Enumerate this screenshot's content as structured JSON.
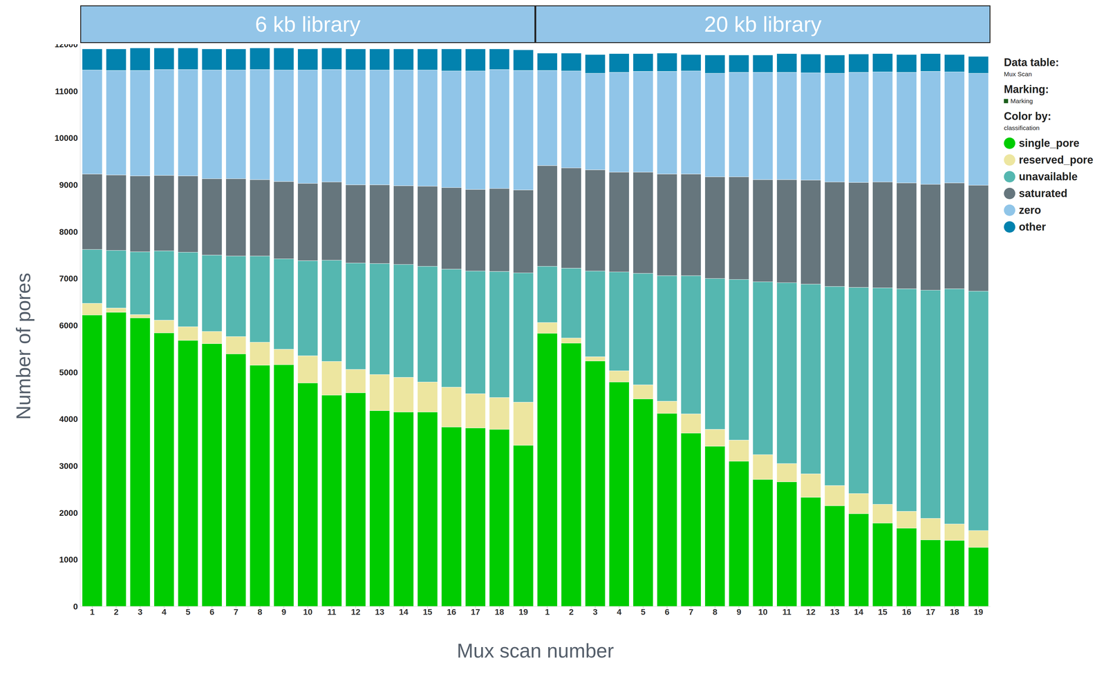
{
  "chart_data": {
    "type": "bar",
    "stacked": true,
    "grid": false,
    "legend": "right",
    "x_label": "Mux scan number",
    "y_label": "Number of pores",
    "ylim": [
      0,
      12000
    ],
    "yticks": [
      0,
      1000,
      2000,
      3000,
      4000,
      5000,
      6000,
      7000,
      8000,
      9000,
      10000,
      11000,
      12000
    ],
    "legend_header": [
      {
        "label": "Data table:",
        "value": "Mux Scan"
      },
      {
        "label": "Marking:",
        "value": "Marking"
      },
      {
        "label": "Color by:",
        "value": "classification"
      }
    ],
    "panels": [
      {
        "title": "6 kb library",
        "categories": [
          "1",
          "2",
          "3",
          "4",
          "5",
          "6",
          "7",
          "8",
          "9",
          "10",
          "11",
          "12",
          "13",
          "14",
          "15",
          "16",
          "17",
          "18",
          "19"
        ],
        "series": [
          {
            "name": "single_pore",
            "color": "#00cc00",
            "values": [
              6220,
              6280,
              6160,
              5840,
              5680,
              5610,
              5390,
              5150,
              5160,
              4770,
              4510,
              4560,
              4180,
              4150,
              4150,
              3830,
              3810,
              3780,
              3440
            ]
          },
          {
            "name": "reserved_pore",
            "color": "#ede6a0",
            "values": [
              250,
              90,
              70,
              270,
              290,
              260,
              370,
              490,
              330,
              580,
              720,
              500,
              770,
              740,
              640,
              850,
              730,
              680,
              920
            ]
          },
          {
            "name": "unavailable",
            "color": "#55b7b0",
            "values": [
              1150,
              1230,
              1340,
              1480,
              1590,
              1630,
              1720,
              1840,
              1930,
              2030,
              2160,
              2270,
              2370,
              2410,
              2470,
              2520,
              2620,
              2690,
              2760
            ]
          },
          {
            "name": "saturated",
            "color": "#66767d",
            "values": [
              1610,
              1610,
              1620,
              1610,
              1630,
              1630,
              1650,
              1630,
              1650,
              1650,
              1670,
              1670,
              1680,
              1680,
              1710,
              1740,
              1740,
              1770,
              1770
            ]
          },
          {
            "name": "zero",
            "color": "#90c5e8",
            "values": [
              2220,
              2230,
              2250,
              2260,
              2270,
              2320,
              2320,
              2350,
              2380,
              2420,
              2400,
              2450,
              2450,
              2470,
              2480,
              2490,
              2530,
              2540,
              2550
            ]
          },
          {
            "name": "other",
            "color": "#0282ae",
            "values": [
              450,
              460,
              480,
              460,
              460,
              450,
              450,
              460,
              470,
              450,
              460,
              450,
              450,
              450,
              450,
              470,
              470,
              440,
              440
            ]
          }
        ]
      },
      {
        "title": "20 kb library",
        "categories": [
          "1",
          "2",
          "3",
          "4",
          "5",
          "6",
          "7",
          "8",
          "9",
          "10",
          "11",
          "12",
          "13",
          "14",
          "15",
          "16",
          "17",
          "18",
          "19"
        ],
        "series": [
          {
            "name": "single_pore",
            "color": "#00cc00",
            "values": [
              5830,
              5620,
              5240,
              4790,
              4430,
              4120,
              3700,
              3420,
              3100,
              2710,
              2660,
              2330,
              2150,
              1980,
              1780,
              1670,
              1420,
              1410,
              1260
            ]
          },
          {
            "name": "reserved_pore",
            "color": "#ede6a0",
            "values": [
              230,
              110,
              90,
              240,
              300,
              260,
              410,
              360,
              450,
              530,
              390,
              500,
              430,
              430,
              400,
              360,
              460,
              350,
              360
            ]
          },
          {
            "name": "unavailable",
            "color": "#55b7b0",
            "values": [
              1200,
              1490,
              1830,
              2110,
              2380,
              2680,
              2950,
              3220,
              3430,
              3690,
              3860,
              4050,
              4250,
              4400,
              4620,
              4750,
              4870,
              5020,
              5110
            ]
          },
          {
            "name": "saturated",
            "color": "#66767d",
            "values": [
              2150,
              2140,
              2160,
              2130,
              2160,
              2170,
              2170,
              2170,
              2190,
              2180,
              2200,
              2220,
              2230,
              2240,
              2260,
              2260,
              2260,
              2260,
              2260
            ]
          },
          {
            "name": "zero",
            "color": "#90c5e8",
            "values": [
              2030,
              2070,
              2060,
              2130,
              2150,
              2190,
              2200,
              2210,
              2230,
              2290,
              2290,
              2290,
              2320,
              2350,
              2350,
              2360,
              2410,
              2370,
              2390
            ]
          },
          {
            "name": "other",
            "color": "#0282ae",
            "values": [
              370,
              380,
              400,
              400,
              380,
              390,
              350,
              390,
              370,
              370,
              400,
              400,
              390,
              390,
              390,
              380,
              380,
              370,
              360
            ]
          }
        ]
      }
    ]
  }
}
